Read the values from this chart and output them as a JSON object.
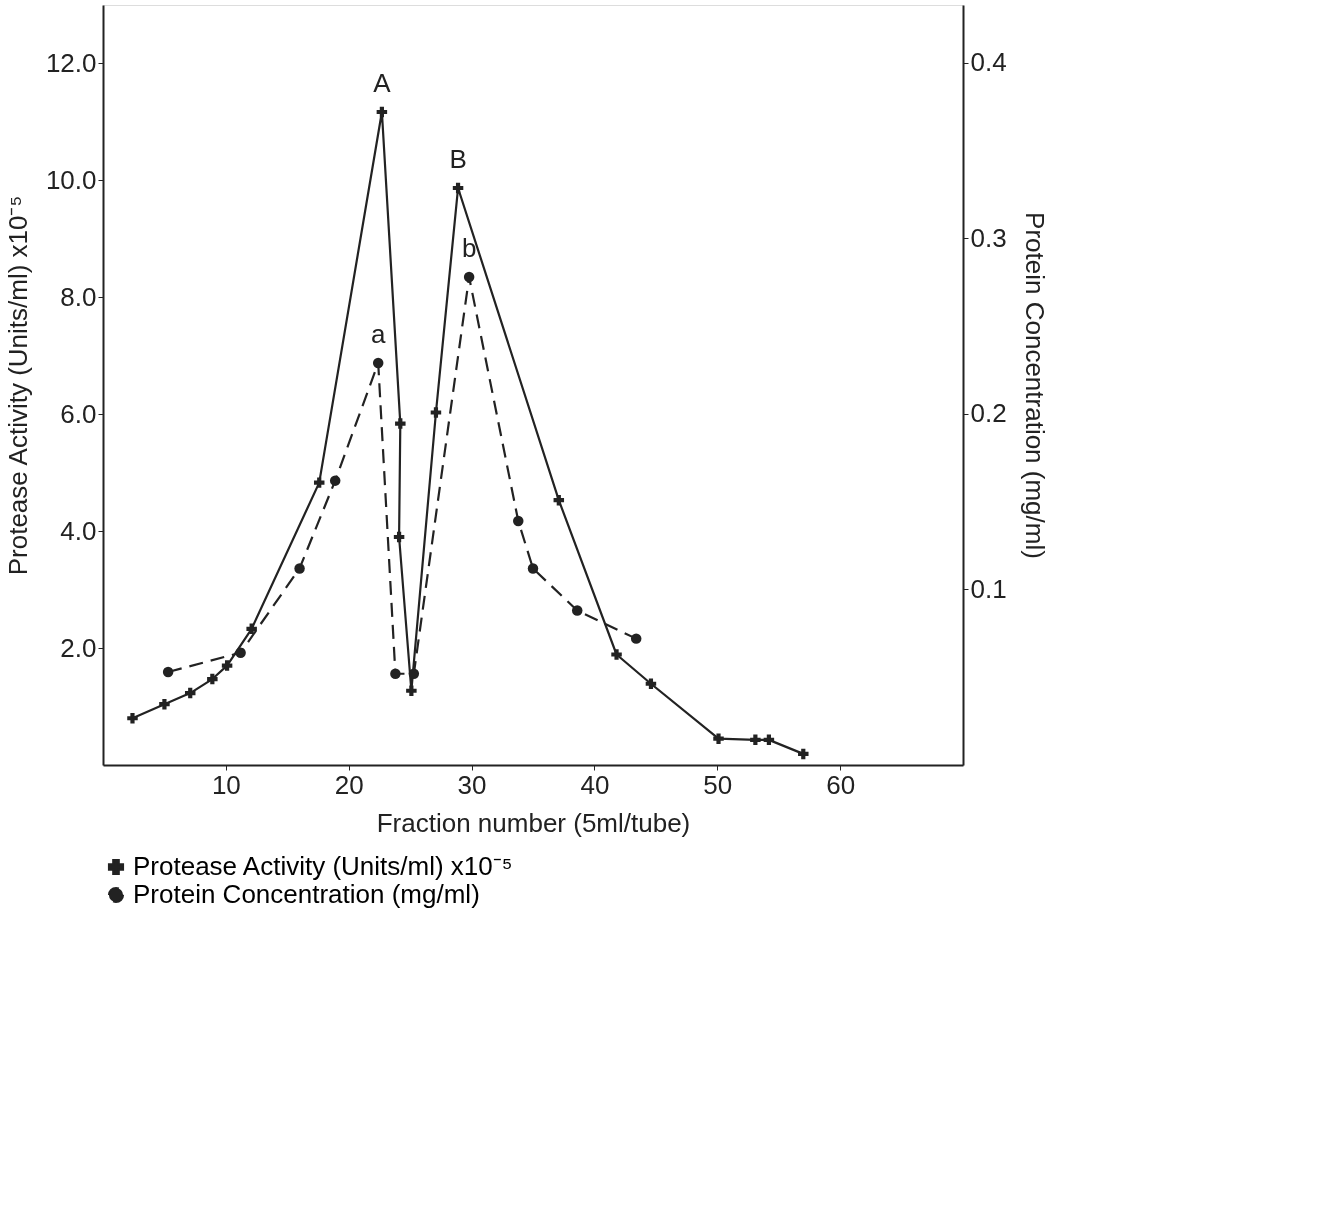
{
  "chart_data": {
    "type": "line",
    "xlabel": "Fraction number (5ml/tube)",
    "ylabel": "Protease Activity (Units/ml) x10⁻⁵",
    "y2label": "Protein Concentration (mg/ml)",
    "xlim": [
      0,
      70
    ],
    "xticks": [
      10,
      20,
      30,
      40,
      50,
      60
    ],
    "ylim": [
      0,
      13
    ],
    "yticks": [
      {
        "value": 2,
        "label": "2.0"
      },
      {
        "value": 4,
        "label": "4.0"
      },
      {
        "value": 6,
        "label": "6.0"
      },
      {
        "value": 8,
        "label": "8.0"
      },
      {
        "value": 10,
        "label": "10.0"
      },
      {
        "value": 12,
        "label": "12.0"
      }
    ],
    "y2lim": [
      0,
      0.433
    ],
    "y2ticks": [
      0.1,
      0.2,
      0.3,
      0.4
    ],
    "grid": false,
    "legend": "bottom",
    "series": [
      {
        "name": "Protease Activity (Units/ml) x10⁻⁵",
        "color": "#222222",
        "marker": "cross",
        "line_style": "solid",
        "x": [
          2.4,
          5.0,
          7.1,
          8.9,
          10.1,
          12.1,
          17.6,
          22.7,
          24.2,
          24.1,
          25.1,
          27.1,
          28.9,
          37.1,
          41.8,
          44.6,
          50.1,
          53.1,
          54.2,
          57.0
        ],
        "values": [
          0.8,
          1.04,
          1.23,
          1.47,
          1.7,
          2.33,
          4.83,
          11.17,
          5.84,
          3.9,
          1.27,
          6.03,
          9.87,
          4.53,
          1.89,
          1.39,
          0.45,
          0.43,
          0.43,
          0.19
        ]
      },
      {
        "name": "Protein Concentration (mg/ml)",
        "color": "#222222",
        "marker": "circle",
        "line_style": "dashed",
        "axis": "y2",
        "x": [
          5.3,
          11.2,
          16.0,
          18.9,
          22.4,
          23.8,
          25.3,
          29.8,
          33.8,
          35.0,
          38.6,
          43.4
        ],
        "values": [
          0.053,
          0.064,
          0.112,
          0.162,
          0.229,
          0.052,
          0.052,
          0.278,
          0.139,
          0.112,
          0.088,
          0.072
        ]
      }
    ],
    "annotations": [
      {
        "text": "A",
        "x": 22.7,
        "y": 11.17
      },
      {
        "text": "B",
        "x": 28.9,
        "y": 9.87
      },
      {
        "text": "a",
        "x": 22.4,
        "y": 6.87
      },
      {
        "text": "b",
        "x": 29.8,
        "y": 8.34
      }
    ]
  }
}
